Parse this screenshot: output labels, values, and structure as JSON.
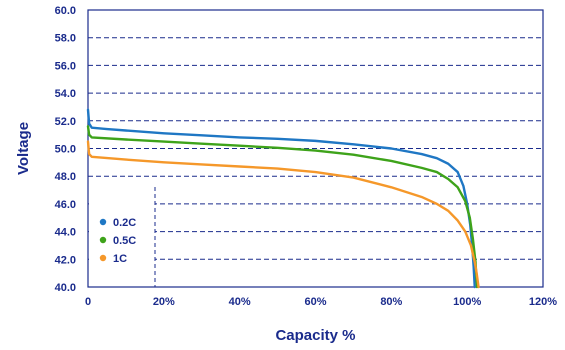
{
  "chart_data": {
    "type": "line",
    "xlabel": "Capacity %",
    "ylabel": "Voltage",
    "xlim": [
      0,
      120
    ],
    "ylim": [
      40,
      60
    ],
    "x_ticks": [
      0,
      20,
      40,
      60,
      80,
      100,
      120
    ],
    "x_tick_labels": [
      "0",
      "20%",
      "40%",
      "60%",
      "80%",
      "100%",
      "120%"
    ],
    "y_ticks": [
      40,
      42,
      44,
      46,
      48,
      50,
      52,
      54,
      56,
      58,
      60
    ],
    "y_tick_labels": [
      "40.0",
      "42.0",
      "44.0",
      "46.0",
      "48.0",
      "50.0",
      "52.0",
      "54.0",
      "56.0",
      "58.0",
      "60.0"
    ],
    "grid": "horizontal dashed",
    "legend_position": "bottom-left",
    "series": [
      {
        "name": "0.2C",
        "color": "#1f77c4",
        "points": [
          [
            0,
            52.8
          ],
          [
            0.3,
            51.8
          ],
          [
            1,
            51.5
          ],
          [
            5,
            51.4
          ],
          [
            10,
            51.3
          ],
          [
            20,
            51.1
          ],
          [
            30,
            50.95
          ],
          [
            40,
            50.8
          ],
          [
            50,
            50.7
          ],
          [
            60,
            50.55
          ],
          [
            70,
            50.3
          ],
          [
            80,
            50.0
          ],
          [
            88,
            49.6
          ],
          [
            92,
            49.3
          ],
          [
            95,
            48.9
          ],
          [
            97.5,
            48.3
          ],
          [
            99,
            47.3
          ],
          [
            100,
            46.0
          ],
          [
            100.8,
            44.5
          ],
          [
            101.3,
            43.0
          ],
          [
            101.7,
            41.5
          ],
          [
            102,
            40.0
          ]
        ]
      },
      {
        "name": "0.5C",
        "color": "#3ea31a",
        "points": [
          [
            0,
            51.6
          ],
          [
            0.3,
            51.0
          ],
          [
            1,
            50.8
          ],
          [
            10,
            50.65
          ],
          [
            20,
            50.5
          ],
          [
            30,
            50.35
          ],
          [
            40,
            50.2
          ],
          [
            50,
            50.05
          ],
          [
            60,
            49.85
          ],
          [
            70,
            49.55
          ],
          [
            80,
            49.1
          ],
          [
            88,
            48.6
          ],
          [
            92,
            48.3
          ],
          [
            95,
            47.8
          ],
          [
            97.5,
            47.2
          ],
          [
            99.5,
            46.2
          ],
          [
            100.7,
            45.0
          ],
          [
            101.5,
            43.5
          ],
          [
            102.2,
            41.8
          ],
          [
            102.6,
            40.0
          ]
        ]
      },
      {
        "name": "1C",
        "color": "#f5982a",
        "points": [
          [
            0,
            50.5
          ],
          [
            0.3,
            49.6
          ],
          [
            1,
            49.4
          ],
          [
            10,
            49.2
          ],
          [
            20,
            49.0
          ],
          [
            30,
            48.85
          ],
          [
            40,
            48.7
          ],
          [
            50,
            48.55
          ],
          [
            60,
            48.3
          ],
          [
            70,
            47.9
          ],
          [
            80,
            47.2
          ],
          [
            88,
            46.5
          ],
          [
            92,
            46.0
          ],
          [
            95,
            45.5
          ],
          [
            97.5,
            44.8
          ],
          [
            99.5,
            44.0
          ],
          [
            101,
            43.0
          ],
          [
            102,
            41.8
          ],
          [
            102.5,
            41.0
          ],
          [
            103,
            40.0
          ]
        ]
      }
    ]
  }
}
